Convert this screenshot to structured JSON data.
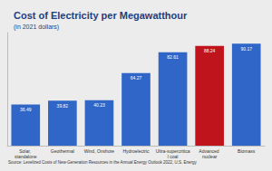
{
  "chart_data": {
    "type": "bar",
    "title": "Cost of Electricity per Megawatthour",
    "subtitle": "(in 2021 dollars)",
    "source": "Source: Levelized Costs of New-Generation Resources in the Annual Energy Outlook 2022, U.S. Energy",
    "categories": [
      "Solar, standalone",
      "Geothermal",
      "Wind, Onshore",
      "Hydroelectric",
      "Ultra-supercritical coal",
      "Advanced nuclear",
      "Biomass"
    ],
    "values": [
      36.49,
      39.82,
      40.23,
      64.27,
      82.61,
      88.24,
      90.17
    ],
    "colors": [
      "#2f66c8",
      "#2f66c8",
      "#2f66c8",
      "#2f66c8",
      "#2f66c8",
      "#c0141c",
      "#2f66c8"
    ],
    "ylim": [
      0,
      100
    ],
    "grid": false,
    "data_labels": true,
    "tick_labels": "x"
  }
}
